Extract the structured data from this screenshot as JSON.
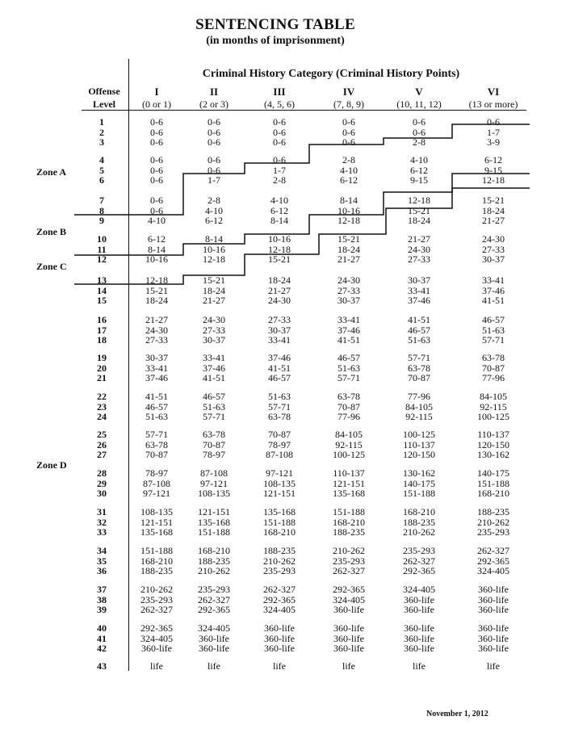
{
  "header": {
    "title": "SENTENCING TABLE",
    "subtitle": "(in months of imprisonment)",
    "category_heading": "Criminal History Category  (Criminal History Points)",
    "offense_label_1": "Offense",
    "offense_label_2": "Level"
  },
  "columns": [
    {
      "numeral": "I",
      "points": "(0 or 1)"
    },
    {
      "numeral": "II",
      "points": "(2 or 3)"
    },
    {
      "numeral": "III",
      "points": "(4, 5, 6)"
    },
    {
      "numeral": "IV",
      "points": "(7, 8, 9)"
    },
    {
      "numeral": "V",
      "points": "(10, 11, 12)"
    },
    {
      "numeral": "VI",
      "points": "(13 or more)"
    }
  ],
  "rows": [
    {
      "level": "1",
      "ranges": [
        "0-6",
        "0-6",
        "0-6",
        "0-6",
        "0-6",
        "0-6"
      ]
    },
    {
      "level": "2",
      "ranges": [
        "0-6",
        "0-6",
        "0-6",
        "0-6",
        "0-6",
        "1-7"
      ]
    },
    {
      "level": "3",
      "ranges": [
        "0-6",
        "0-6",
        "0-6",
        "0-6",
        "2-8",
        "3-9"
      ]
    },
    {
      "level": "4",
      "ranges": [
        "0-6",
        "0-6",
        "0-6",
        "2-8",
        "4-10",
        "6-12"
      ]
    },
    {
      "level": "5",
      "ranges": [
        "0-6",
        "0-6",
        "1-7",
        "4-10",
        "6-12",
        "9-15"
      ]
    },
    {
      "level": "6",
      "ranges": [
        "0-6",
        "1-7",
        "2-8",
        "6-12",
        "9-15",
        "12-18"
      ]
    },
    {
      "level": "7",
      "ranges": [
        "0-6",
        "2-8",
        "4-10",
        "8-14",
        "12-18",
        "15-21"
      ]
    },
    {
      "level": "8",
      "ranges": [
        "0-6",
        "4-10",
        "6-12",
        "10-16",
        "15-21",
        "18-24"
      ]
    },
    {
      "level": "9",
      "ranges": [
        "4-10",
        "6-12",
        "8-14",
        "12-18",
        "18-24",
        "21-27"
      ]
    },
    {
      "level": "10",
      "ranges": [
        "6-12",
        "8-14",
        "10-16",
        "15-21",
        "21-27",
        "24-30"
      ]
    },
    {
      "level": "11",
      "ranges": [
        "8-14",
        "10-16",
        "12-18",
        "18-24",
        "24-30",
        "27-33"
      ]
    },
    {
      "level": "12",
      "ranges": [
        "10-16",
        "12-18",
        "15-21",
        "21-27",
        "27-33",
        "30-37"
      ]
    },
    {
      "level": "13",
      "ranges": [
        "12-18",
        "15-21",
        "18-24",
        "24-30",
        "30-37",
        "33-41"
      ]
    },
    {
      "level": "14",
      "ranges": [
        "15-21",
        "18-24",
        "21-27",
        "27-33",
        "33-41",
        "37-46"
      ]
    },
    {
      "level": "15",
      "ranges": [
        "18-24",
        "21-27",
        "24-30",
        "30-37",
        "37-46",
        "41-51"
      ]
    },
    {
      "level": "16",
      "ranges": [
        "21-27",
        "24-30",
        "27-33",
        "33-41",
        "41-51",
        "46-57"
      ]
    },
    {
      "level": "17",
      "ranges": [
        "24-30",
        "27-33",
        "30-37",
        "37-46",
        "46-57",
        "51-63"
      ]
    },
    {
      "level": "18",
      "ranges": [
        "27-33",
        "30-37",
        "33-41",
        "41-51",
        "51-63",
        "57-71"
      ]
    },
    {
      "level": "19",
      "ranges": [
        "30-37",
        "33-41",
        "37-46",
        "46-57",
        "57-71",
        "63-78"
      ]
    },
    {
      "level": "20",
      "ranges": [
        "33-41",
        "37-46",
        "41-51",
        "51-63",
        "63-78",
        "70-87"
      ]
    },
    {
      "level": "21",
      "ranges": [
        "37-46",
        "41-51",
        "46-57",
        "57-71",
        "70-87",
        "77-96"
      ]
    },
    {
      "level": "22",
      "ranges": [
        "41-51",
        "46-57",
        "51-63",
        "63-78",
        "77-96",
        "84-105"
      ]
    },
    {
      "level": "23",
      "ranges": [
        "46-57",
        "51-63",
        "57-71",
        "70-87",
        "84-105",
        "92-115"
      ]
    },
    {
      "level": "24",
      "ranges": [
        "51-63",
        "57-71",
        "63-78",
        "77-96",
        "92-115",
        "100-125"
      ]
    },
    {
      "level": "25",
      "ranges": [
        "57-71",
        "63-78",
        "70-87",
        "84-105",
        "100-125",
        "110-137"
      ]
    },
    {
      "level": "26",
      "ranges": [
        "63-78",
        "70-87",
        "78-97",
        "92-115",
        "110-137",
        "120-150"
      ]
    },
    {
      "level": "27",
      "ranges": [
        "70-87",
        "78-97",
        "87-108",
        "100-125",
        "120-150",
        "130-162"
      ]
    },
    {
      "level": "28",
      "ranges": [
        "78-97",
        "87-108",
        "97-121",
        "110-137",
        "130-162",
        "140-175"
      ]
    },
    {
      "level": "29",
      "ranges": [
        "87-108",
        "97-121",
        "108-135",
        "121-151",
        "140-175",
        "151-188"
      ]
    },
    {
      "level": "30",
      "ranges": [
        "97-121",
        "108-135",
        "121-151",
        "135-168",
        "151-188",
        "168-210"
      ]
    },
    {
      "level": "31",
      "ranges": [
        "108-135",
        "121-151",
        "135-168",
        "151-188",
        "168-210",
        "188-235"
      ]
    },
    {
      "level": "32",
      "ranges": [
        "121-151",
        "135-168",
        "151-188",
        "168-210",
        "188-235",
        "210-262"
      ]
    },
    {
      "level": "33",
      "ranges": [
        "135-168",
        "151-188",
        "168-210",
        "188-235",
        "210-262",
        "235-293"
      ]
    },
    {
      "level": "34",
      "ranges": [
        "151-188",
        "168-210",
        "188-235",
        "210-262",
        "235-293",
        "262-327"
      ]
    },
    {
      "level": "35",
      "ranges": [
        "168-210",
        "188-235",
        "210-262",
        "235-293",
        "262-327",
        "292-365"
      ]
    },
    {
      "level": "36",
      "ranges": [
        "188-235",
        "210-262",
        "235-293",
        "262-327",
        "292-365",
        "324-405"
      ]
    },
    {
      "level": "37",
      "ranges": [
        "210-262",
        "235-293",
        "262-327",
        "292-365",
        "324-405",
        "360-life"
      ]
    },
    {
      "level": "38",
      "ranges": [
        "235-293",
        "262-327",
        "292-365",
        "324-405",
        "360-life",
        "360-life"
      ]
    },
    {
      "level": "39",
      "ranges": [
        "262-327",
        "292-365",
        "324-405",
        "360-life",
        "360-life",
        "360-life"
      ]
    },
    {
      "level": "40",
      "ranges": [
        "292-365",
        "324-405",
        "360-life",
        "360-life",
        "360-life",
        "360-life"
      ]
    },
    {
      "level": "41",
      "ranges": [
        "324-405",
        "360-life",
        "360-life",
        "360-life",
        "360-life",
        "360-life"
      ]
    },
    {
      "level": "42",
      "ranges": [
        "360-life",
        "360-life",
        "360-life",
        "360-life",
        "360-life",
        "360-life"
      ]
    },
    {
      "level": "43",
      "ranges": [
        "life",
        "life",
        "life",
        "life",
        "life",
        "life"
      ]
    }
  ],
  "zones": {
    "a": "Zone A",
    "b": "Zone B",
    "c": "Zone C",
    "d": "Zone D"
  },
  "footer": {
    "date": "November 1, 2012"
  }
}
